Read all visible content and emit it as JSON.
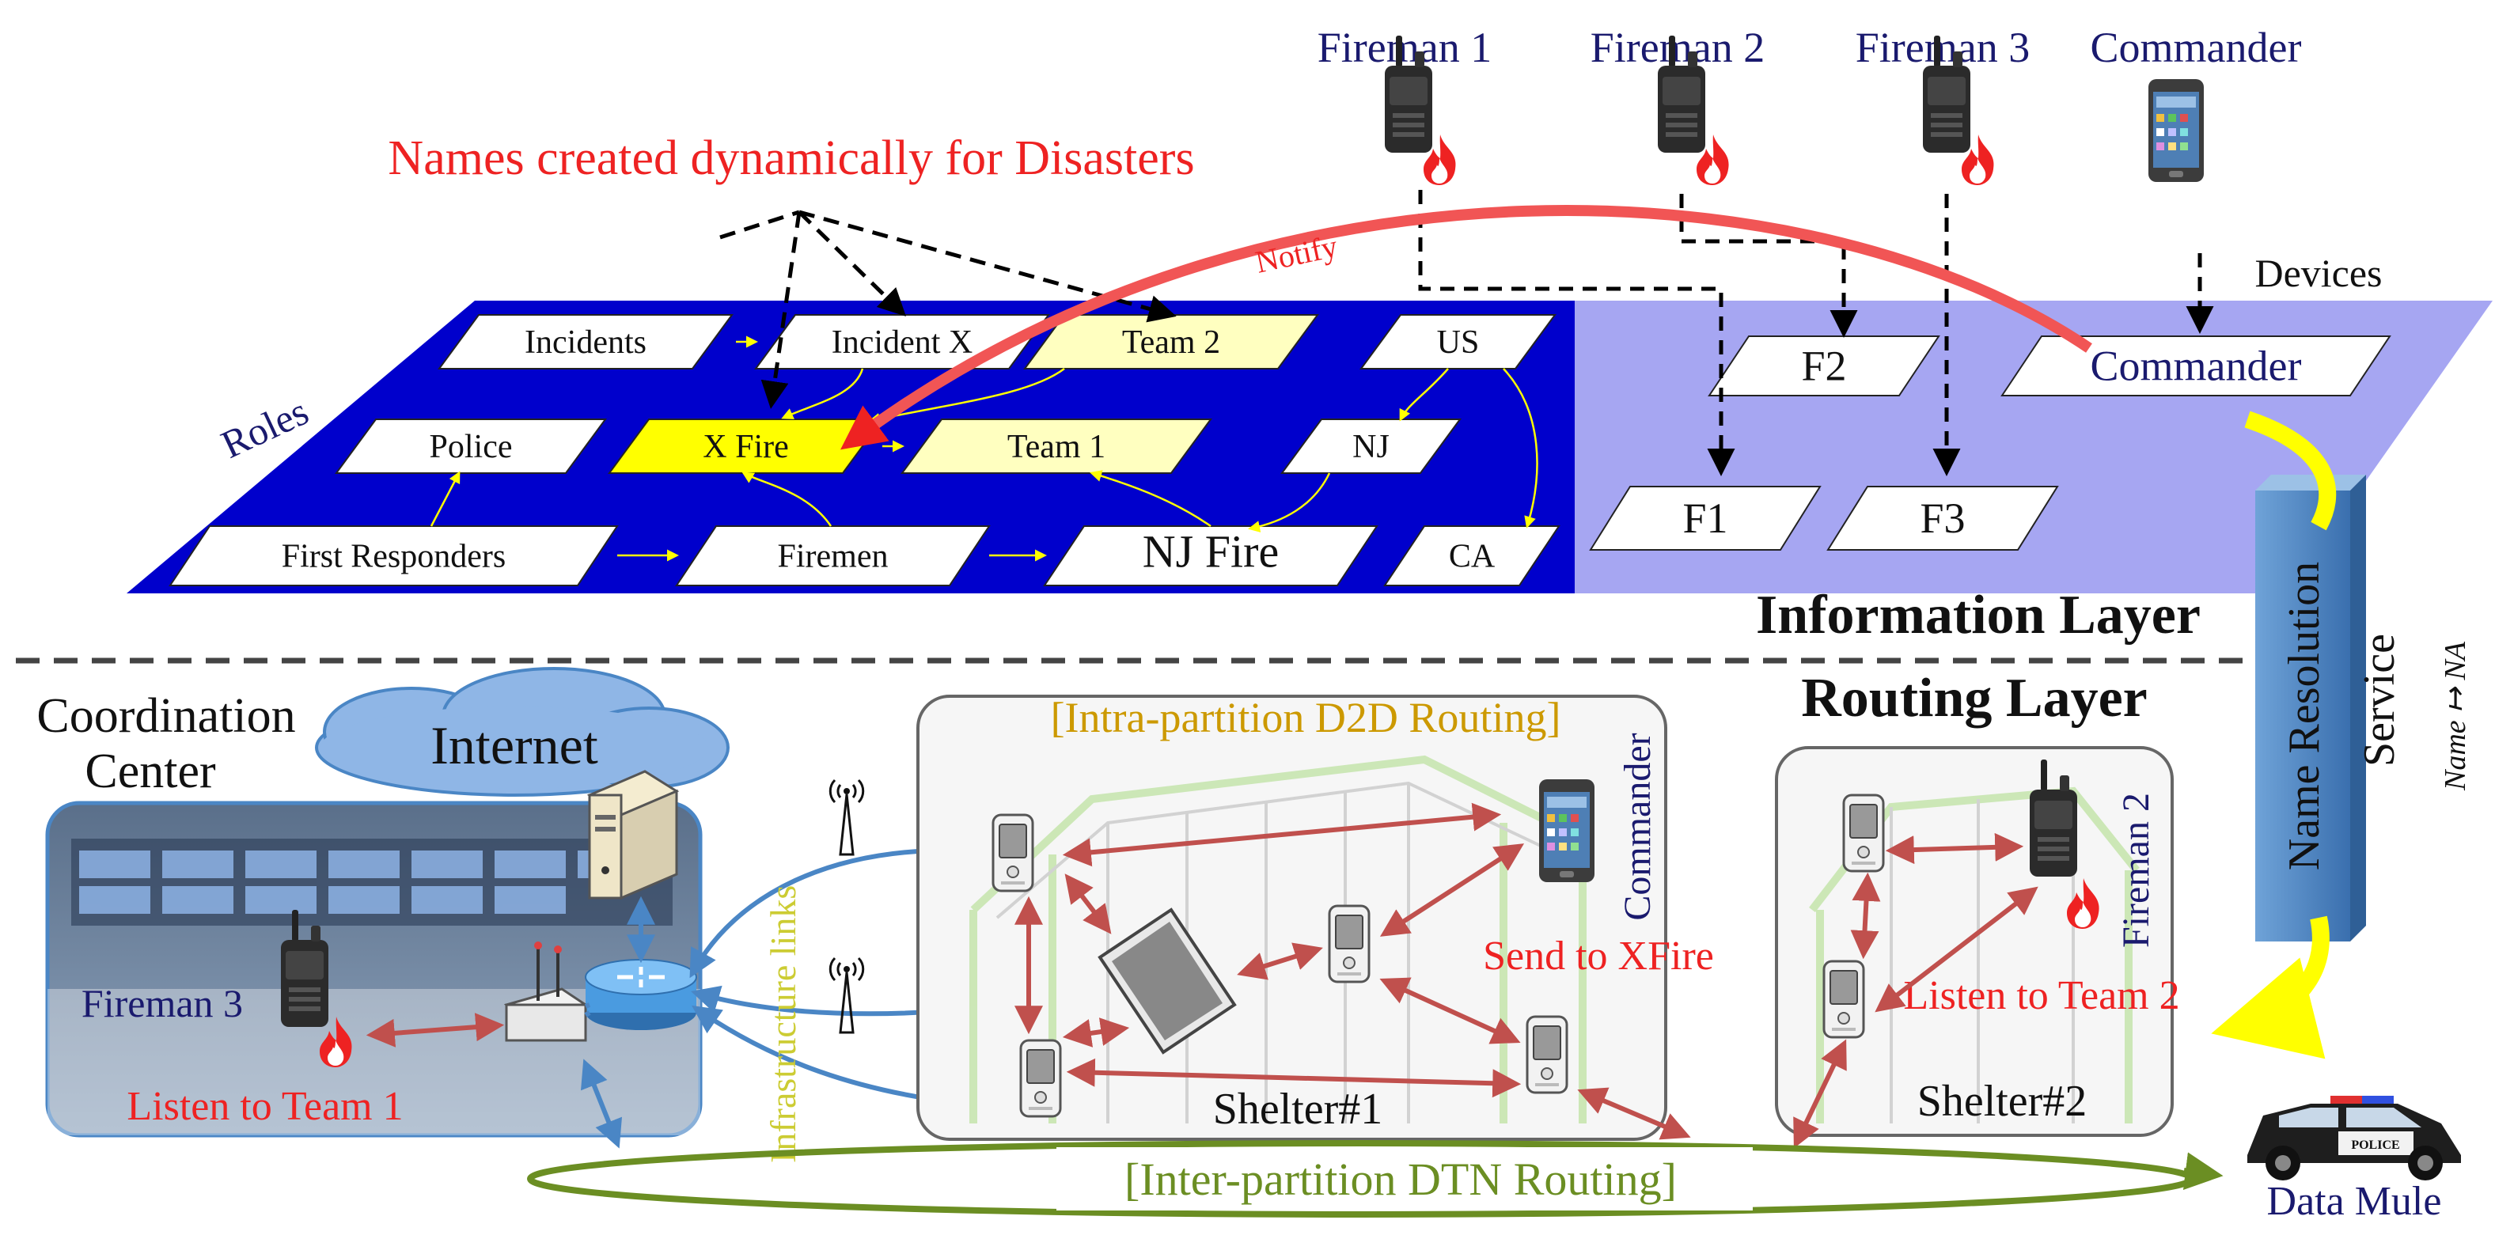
{
  "title": "Names created dynamically for Disasters",
  "layers": {
    "information": "Information Layer",
    "routing": "Routing Layer",
    "roles_label": "Roles",
    "devices_label": "Devices"
  },
  "roles": [
    {
      "id": "incidents",
      "label": "Incidents",
      "highlight": false
    },
    {
      "id": "incident_x",
      "label": "Incident X",
      "highlight": false
    },
    {
      "id": "team2",
      "label": "Team 2",
      "highlight": true
    },
    {
      "id": "us",
      "label": "US",
      "highlight": false
    },
    {
      "id": "police",
      "label": "Police",
      "highlight": false
    },
    {
      "id": "xfire",
      "label": "X Fire",
      "highlight": true
    },
    {
      "id": "team1",
      "label": "Team 1",
      "highlight": true
    },
    {
      "id": "nj",
      "label": "NJ",
      "highlight": false
    },
    {
      "id": "first_responders",
      "label": "First Responders",
      "highlight": false
    },
    {
      "id": "firemen",
      "label": "Firemen",
      "highlight": false
    },
    {
      "id": "njfire",
      "label": "NJ Fire",
      "highlight": false
    },
    {
      "id": "ca",
      "label": "CA",
      "highlight": false
    }
  ],
  "device_names": [
    {
      "id": "f1",
      "label": "F1"
    },
    {
      "id": "f2",
      "label": "F2"
    },
    {
      "id": "f3",
      "label": "F3"
    },
    {
      "id": "commander",
      "label": "Commander"
    }
  ],
  "devices_top": [
    {
      "id": "fireman1",
      "label": "Fireman 1",
      "type": "radio"
    },
    {
      "id": "fireman2",
      "label": "Fireman 2",
      "type": "radio"
    },
    {
      "id": "fireman3",
      "label": "Fireman 3",
      "type": "radio"
    },
    {
      "id": "commander",
      "label": "Commander",
      "type": "phone"
    }
  ],
  "notify_label": "Notify",
  "name_resolution": {
    "line1": "Name Resolution",
    "line2": "Service",
    "mapping": "Name ↦ NA"
  },
  "coordination": {
    "title_line1": "Coordination",
    "title_line2": "Center",
    "internet": "Internet",
    "fireman": "Fireman 3",
    "action": "Listen to Team 1",
    "infra_links": "Infrastructure links"
  },
  "shelter1": {
    "label": "Shelter#1",
    "routing_label": "[Intra-partition D2D Routing]",
    "commander": "Commander",
    "action": "Send to XFire"
  },
  "shelter2": {
    "label": "Shelter#2",
    "fireman": "Fireman 2",
    "action": "Listen to Team 2"
  },
  "dtn": {
    "label": "[Inter-partition DTN Routing]",
    "mule": "Data Mule",
    "police_text": "POLICE"
  },
  "colors": {
    "roles_plane": "#0000cc",
    "devices_plane": "#a6a6f2",
    "highlight_role": "#ffff00",
    "soft_highlight_role": "#ffffc0",
    "red_text": "#ee2222",
    "navy_text": "#1a1a6e",
    "dtn_green": "#6b8e23",
    "routing_yellow": "#cc9900",
    "link_red": "#c0504d",
    "link_blue": "#4a86c5",
    "nrs_blue": "#4a86c5",
    "nrs_arrow": "#ffff00"
  }
}
